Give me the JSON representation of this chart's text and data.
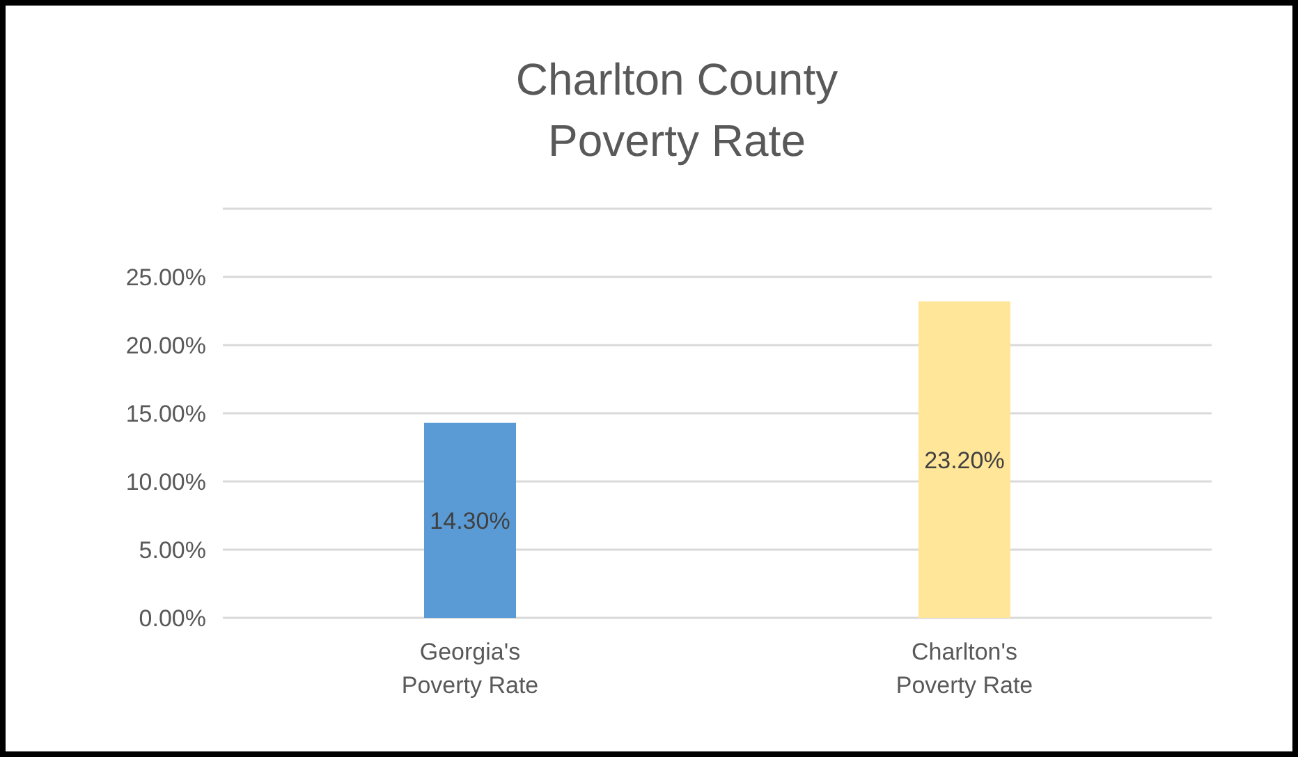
{
  "chart_data": {
    "type": "bar",
    "title": "Charlton County\nPoverty Rate",
    "categories": [
      "Georgia's\nPoverty Rate",
      "Charlton's\nPoverty Rate"
    ],
    "values": [
      14.3,
      23.2
    ],
    "colors": [
      "#5b9bd5",
      "#ffe699"
    ],
    "value_labels": [
      "14.30%",
      "23.20%"
    ],
    "ylim": [
      0,
      30
    ],
    "yticks": [
      {
        "value": 0,
        "label": "0.00%"
      },
      {
        "value": 5,
        "label": "5.00%"
      },
      {
        "value": 10,
        "label": "10.00%"
      },
      {
        "value": 15,
        "label": "15.00%"
      },
      {
        "value": 20,
        "label": "20.00%"
      },
      {
        "value": 25,
        "label": "25.00%"
      },
      {
        "value": 30,
        "label": null
      }
    ],
    "grid": "y"
  }
}
